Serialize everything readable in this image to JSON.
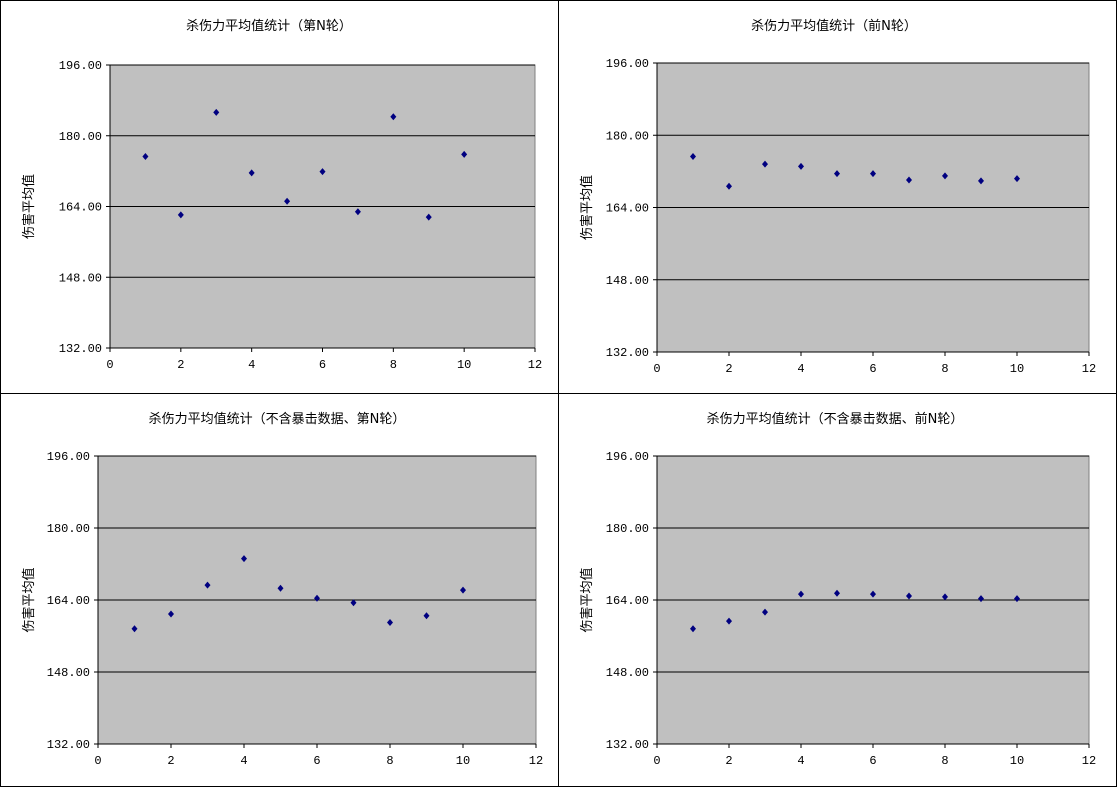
{
  "colors": {
    "plot_bg": "#c0c0c0",
    "grid": "#000000",
    "marker": "#000080",
    "marker_shape": "diamond"
  },
  "chart_data": [
    {
      "type": "scatter",
      "title": "杀伤力平均值统计（第N轮）",
      "xlabel": "",
      "ylabel": "伤害平均值",
      "xlim": [
        0,
        12
      ],
      "xticks": [
        "0",
        "2",
        "4",
        "6",
        "8",
        "10",
        "12"
      ],
      "ylim": [
        132,
        196
      ],
      "yticks": [
        "132.00",
        "148.00",
        "164.00",
        "180.00",
        "196.00"
      ],
      "x": [
        1,
        2,
        3,
        4,
        5,
        6,
        7,
        8,
        9,
        10
      ],
      "y": [
        175.3,
        162.1,
        185.3,
        171.6,
        165.2,
        171.9,
        162.8,
        184.3,
        161.6,
        175.8
      ],
      "grid": true
    },
    {
      "type": "scatter",
      "title": "杀伤力平均值统计（前N轮）",
      "xlabel": "",
      "ylabel": "伤害平均值",
      "xlim": [
        0,
        12
      ],
      "xticks": [
        "0",
        "2",
        "4",
        "6",
        "8",
        "10",
        "12"
      ],
      "ylim": [
        132,
        196
      ],
      "yticks": [
        "132.00",
        "148.00",
        "164.00",
        "180.00",
        "196.00"
      ],
      "x": [
        1,
        2,
        3,
        4,
        5,
        6,
        7,
        8,
        9,
        10
      ],
      "y": [
        175.3,
        168.7,
        173.6,
        173.1,
        171.5,
        171.5,
        170.1,
        171.0,
        169.9,
        170.4
      ],
      "grid": true
    },
    {
      "type": "scatter",
      "title": "杀伤力平均值统计（不含暴击数据、第N轮）",
      "xlabel": "",
      "ylabel": "伤害平均值",
      "xlim": [
        0,
        12
      ],
      "xticks": [
        "0",
        "2",
        "4",
        "6",
        "8",
        "10",
        "12"
      ],
      "ylim": [
        132,
        196
      ],
      "yticks": [
        "132.00",
        "148.00",
        "164.00",
        "180.00",
        "196.00"
      ],
      "x": [
        1,
        2,
        3,
        4,
        5,
        6,
        7,
        8,
        9,
        10
      ],
      "y": [
        157.6,
        160.9,
        167.3,
        173.2,
        166.6,
        164.4,
        163.4,
        159.0,
        160.5,
        166.2
      ],
      "grid": true
    },
    {
      "type": "scatter",
      "title": "杀伤力平均值统计（不含暴击数据、前N轮）",
      "xlabel": "",
      "ylabel": "伤害平均值",
      "xlim": [
        0,
        12
      ],
      "xticks": [
        "0",
        "2",
        "4",
        "6",
        "8",
        "10",
        "12"
      ],
      "ylim": [
        132,
        196
      ],
      "yticks": [
        "132.00",
        "148.00",
        "164.00",
        "180.00",
        "196.00"
      ],
      "x": [
        1,
        2,
        3,
        4,
        5,
        6,
        7,
        8,
        9,
        10
      ],
      "y": [
        157.6,
        159.3,
        161.3,
        165.3,
        165.5,
        165.3,
        164.9,
        164.7,
        164.3,
        164.3
      ],
      "grid": true
    }
  ]
}
